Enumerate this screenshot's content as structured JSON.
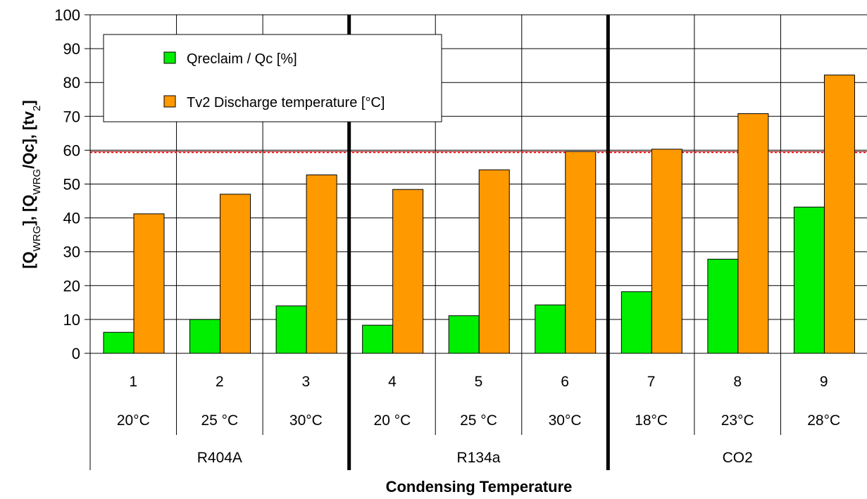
{
  "chart_data": {
    "type": "bar",
    "x_levels": {
      "index": [
        "1",
        "2",
        "3",
        "4",
        "5",
        "6",
        "7",
        "8",
        "9"
      ],
      "temperature": [
        "20°C",
        "25 °C",
        "30°C",
        "20 °C",
        "25 °C",
        "30°C",
        "18°C",
        "23°C",
        "28°C"
      ],
      "refrigerant_groups": [
        {
          "label": "R404A",
          "count": 3
        },
        {
          "label": "R134a",
          "count": 3
        },
        {
          "label": "CO2",
          "count": 3
        }
      ]
    },
    "series": [
      {
        "name": "Qreclaim / Qc [%]",
        "color": "#00ee00",
        "values": [
          6.2,
          10,
          14,
          8.3,
          11.1,
          14.3,
          18.2,
          27.8,
          43.2
        ]
      },
      {
        "name": "Tv2 Discharge temperature [°C]",
        "color": "#ff9900",
        "values": [
          41.2,
          47,
          52.7,
          48.4,
          54.2,
          59.6,
          60.3,
          70.8,
          82.2
        ]
      }
    ],
    "xlabel": "Condensing Temperature",
    "ylabel": {
      "parts": [
        {
          "t": "[Q",
          "sub": false
        },
        {
          "t": "WRG",
          "sub": true
        },
        {
          "t": "], [Q",
          "sub": false
        },
        {
          "t": "WRG",
          "sub": true
        },
        {
          "t": "/Qc], [tv",
          "sub": false
        },
        {
          "t": "2",
          "sub": true
        },
        {
          "t": "]",
          "sub": false
        }
      ]
    },
    "ylim": [
      0,
      100
    ],
    "yticks": [
      0,
      10,
      20,
      30,
      40,
      50,
      60,
      70,
      80,
      90,
      100
    ],
    "reference_line": {
      "y": 59.6,
      "style": "dotted",
      "color": "#ff0000"
    },
    "grid": true,
    "legend_position": "top-left"
  }
}
